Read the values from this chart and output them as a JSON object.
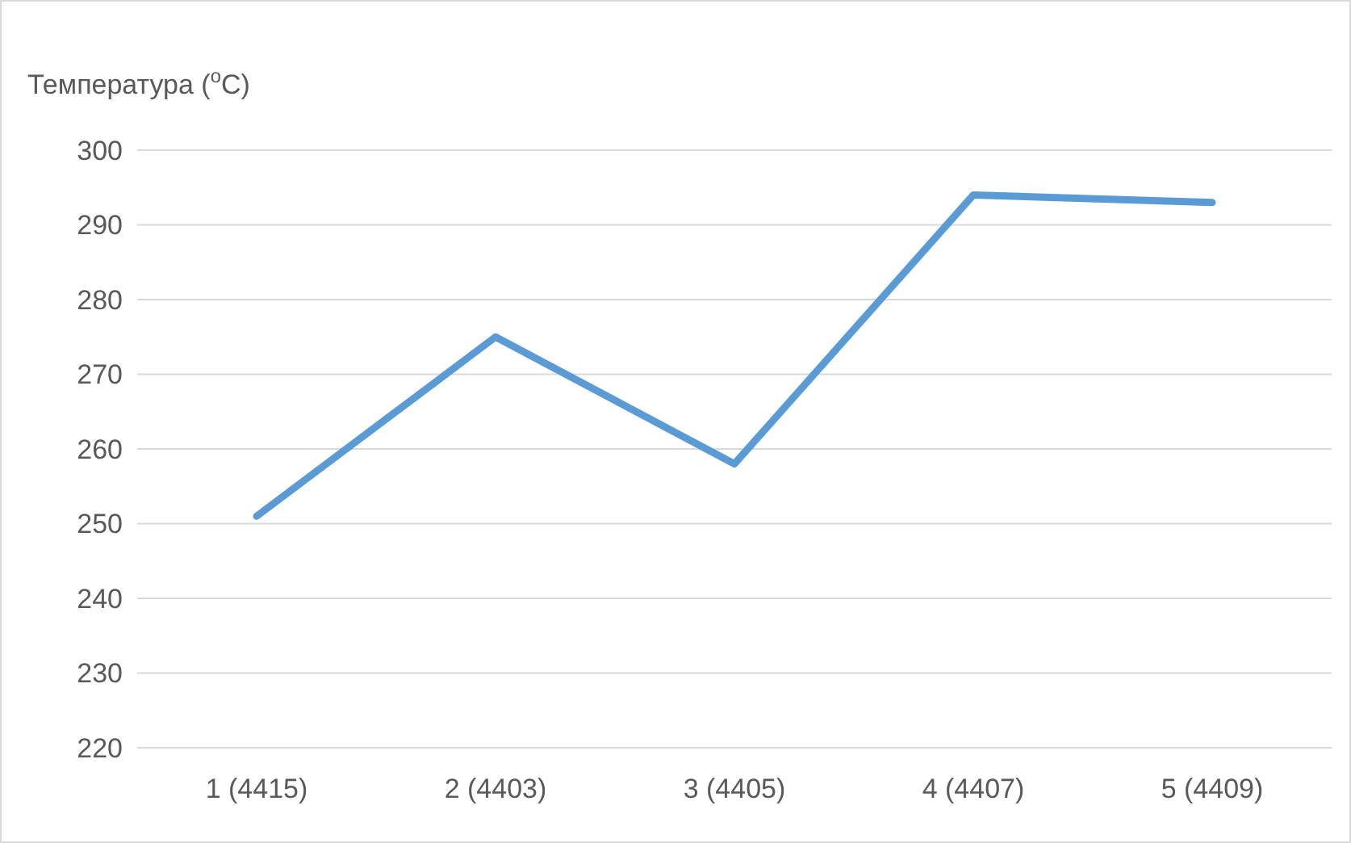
{
  "chart_data": {
    "type": "line",
    "ylabel": "Температура ($^{o}$C)",
    "categories": [
      "1 (4415)",
      "2 (4403)",
      "3 (4405)",
      "4 (4407)",
      "5 (4409)"
    ],
    "series": [
      {
        "color": "#5b9bd5",
        "values": [
          251,
          275,
          258,
          294,
          293
        ]
      }
    ],
    "ylim": [
      220,
      300
    ],
    "yticks": [
      220,
      230,
      240,
      250,
      260,
      270,
      280,
      290,
      300
    ],
    "grid": "y",
    "marker": "none",
    "line_style": "solid"
  }
}
